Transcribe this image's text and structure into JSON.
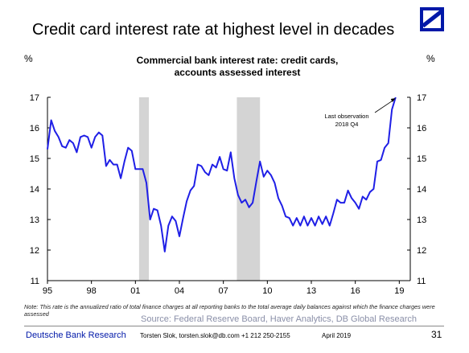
{
  "slide": {
    "title": "Credit card interest rate at highest level in decades",
    "unit_left": "%",
    "unit_right": "%"
  },
  "chart_data": {
    "type": "line",
    "title_line1": "Commercial bank interest rate: credit cards,",
    "title_line2": "accounts assessed interest",
    "ylim": [
      11,
      17
    ],
    "y_ticks": [
      11,
      12,
      13,
      14,
      15,
      16,
      17
    ],
    "x_range": [
      1995.0,
      2019.75
    ],
    "x_tick_labels": [
      "95",
      "98",
      "01",
      "04",
      "07",
      "10",
      "13",
      "16",
      "19"
    ],
    "x_tick_years": [
      1995,
      1998,
      2001,
      2004,
      2007,
      2010,
      2013,
      2016,
      2019
    ],
    "recessions": [
      [
        2001.25,
        2001.92
      ],
      [
        2007.92,
        2009.5
      ]
    ],
    "series": [
      {
        "color": "#1f1fe6",
        "x": [
          1995.0,
          1995.25,
          1995.5,
          1995.75,
          1996.0,
          1996.25,
          1996.5,
          1996.75,
          1997.0,
          1997.25,
          1997.5,
          1997.75,
          1998.0,
          1998.25,
          1998.5,
          1998.75,
          1999.0,
          1999.25,
          1999.5,
          1999.75,
          2000.0,
          2000.25,
          2000.5,
          2000.75,
          2001.0,
          2001.25,
          2001.5,
          2001.75,
          2002.0,
          2002.25,
          2002.5,
          2002.75,
          2003.0,
          2003.25,
          2003.5,
          2003.75,
          2004.0,
          2004.25,
          2004.5,
          2004.75,
          2005.0,
          2005.25,
          2005.5,
          2005.75,
          2006.0,
          2006.25,
          2006.5,
          2006.75,
          2007.0,
          2007.25,
          2007.5,
          2007.75,
          2008.0,
          2008.25,
          2008.5,
          2008.75,
          2009.0,
          2009.25,
          2009.5,
          2009.75,
          2010.0,
          2010.25,
          2010.5,
          2010.75,
          2011.0,
          2011.25,
          2011.5,
          2011.75,
          2012.0,
          2012.25,
          2012.5,
          2012.75,
          2013.0,
          2013.25,
          2013.5,
          2013.75,
          2014.0,
          2014.25,
          2014.5,
          2014.75,
          2015.0,
          2015.25,
          2015.5,
          2015.75,
          2016.0,
          2016.25,
          2016.5,
          2016.75,
          2017.0,
          2017.25,
          2017.5,
          2017.75,
          2018.0,
          2018.25,
          2018.5,
          2018.75
        ],
        "values": [
          15.3,
          16.25,
          15.9,
          15.7,
          15.4,
          15.35,
          15.6,
          15.5,
          15.2,
          15.7,
          15.75,
          15.7,
          15.35,
          15.7,
          15.85,
          15.75,
          14.75,
          14.95,
          14.8,
          14.8,
          14.35,
          14.9,
          15.35,
          15.25,
          14.65,
          14.65,
          14.65,
          14.2,
          13.0,
          13.35,
          13.3,
          12.8,
          11.95,
          12.8,
          13.1,
          12.95,
          12.45,
          13.05,
          13.6,
          13.95,
          14.1,
          14.8,
          14.75,
          14.55,
          14.45,
          14.8,
          14.7,
          15.05,
          14.65,
          14.6,
          15.2,
          14.35,
          13.8,
          13.55,
          13.65,
          13.4,
          13.55,
          14.25,
          14.9,
          14.4,
          14.6,
          14.45,
          14.2,
          13.7,
          13.45,
          13.1,
          13.05,
          12.8,
          13.05,
          12.8,
          13.1,
          12.8,
          13.05,
          12.8,
          13.1,
          12.85,
          13.1,
          12.8,
          13.2,
          13.65,
          13.55,
          13.55,
          13.95,
          13.7,
          13.55,
          13.35,
          13.75,
          13.65,
          13.9,
          14.0,
          14.9,
          14.95,
          15.35,
          15.5,
          16.6,
          17.0
        ]
      }
    ],
    "annotation": {
      "line1": "Last observation",
      "line2": "2018 Q4",
      "x": 2018.75,
      "y": 17.0
    },
    "grid": false,
    "legend": "none"
  },
  "note": "Note: This rate is the annualized ratio of total finance charges at all reporting banks to the total average daily balances against which the finance charges were assessed",
  "source": "Source: Federal Reserve Board, Haver Analytics, DB Global Research",
  "footer": {
    "org": "Deutsche Bank Research",
    "contact": "Torsten Slok, torsten.slok@db.com +1 212 250-2155",
    "date": "April 2019",
    "page": "31"
  },
  "colors": {
    "line": "#1f1fe6",
    "recession": "#d4d4d4",
    "brand": "#0018a8"
  }
}
